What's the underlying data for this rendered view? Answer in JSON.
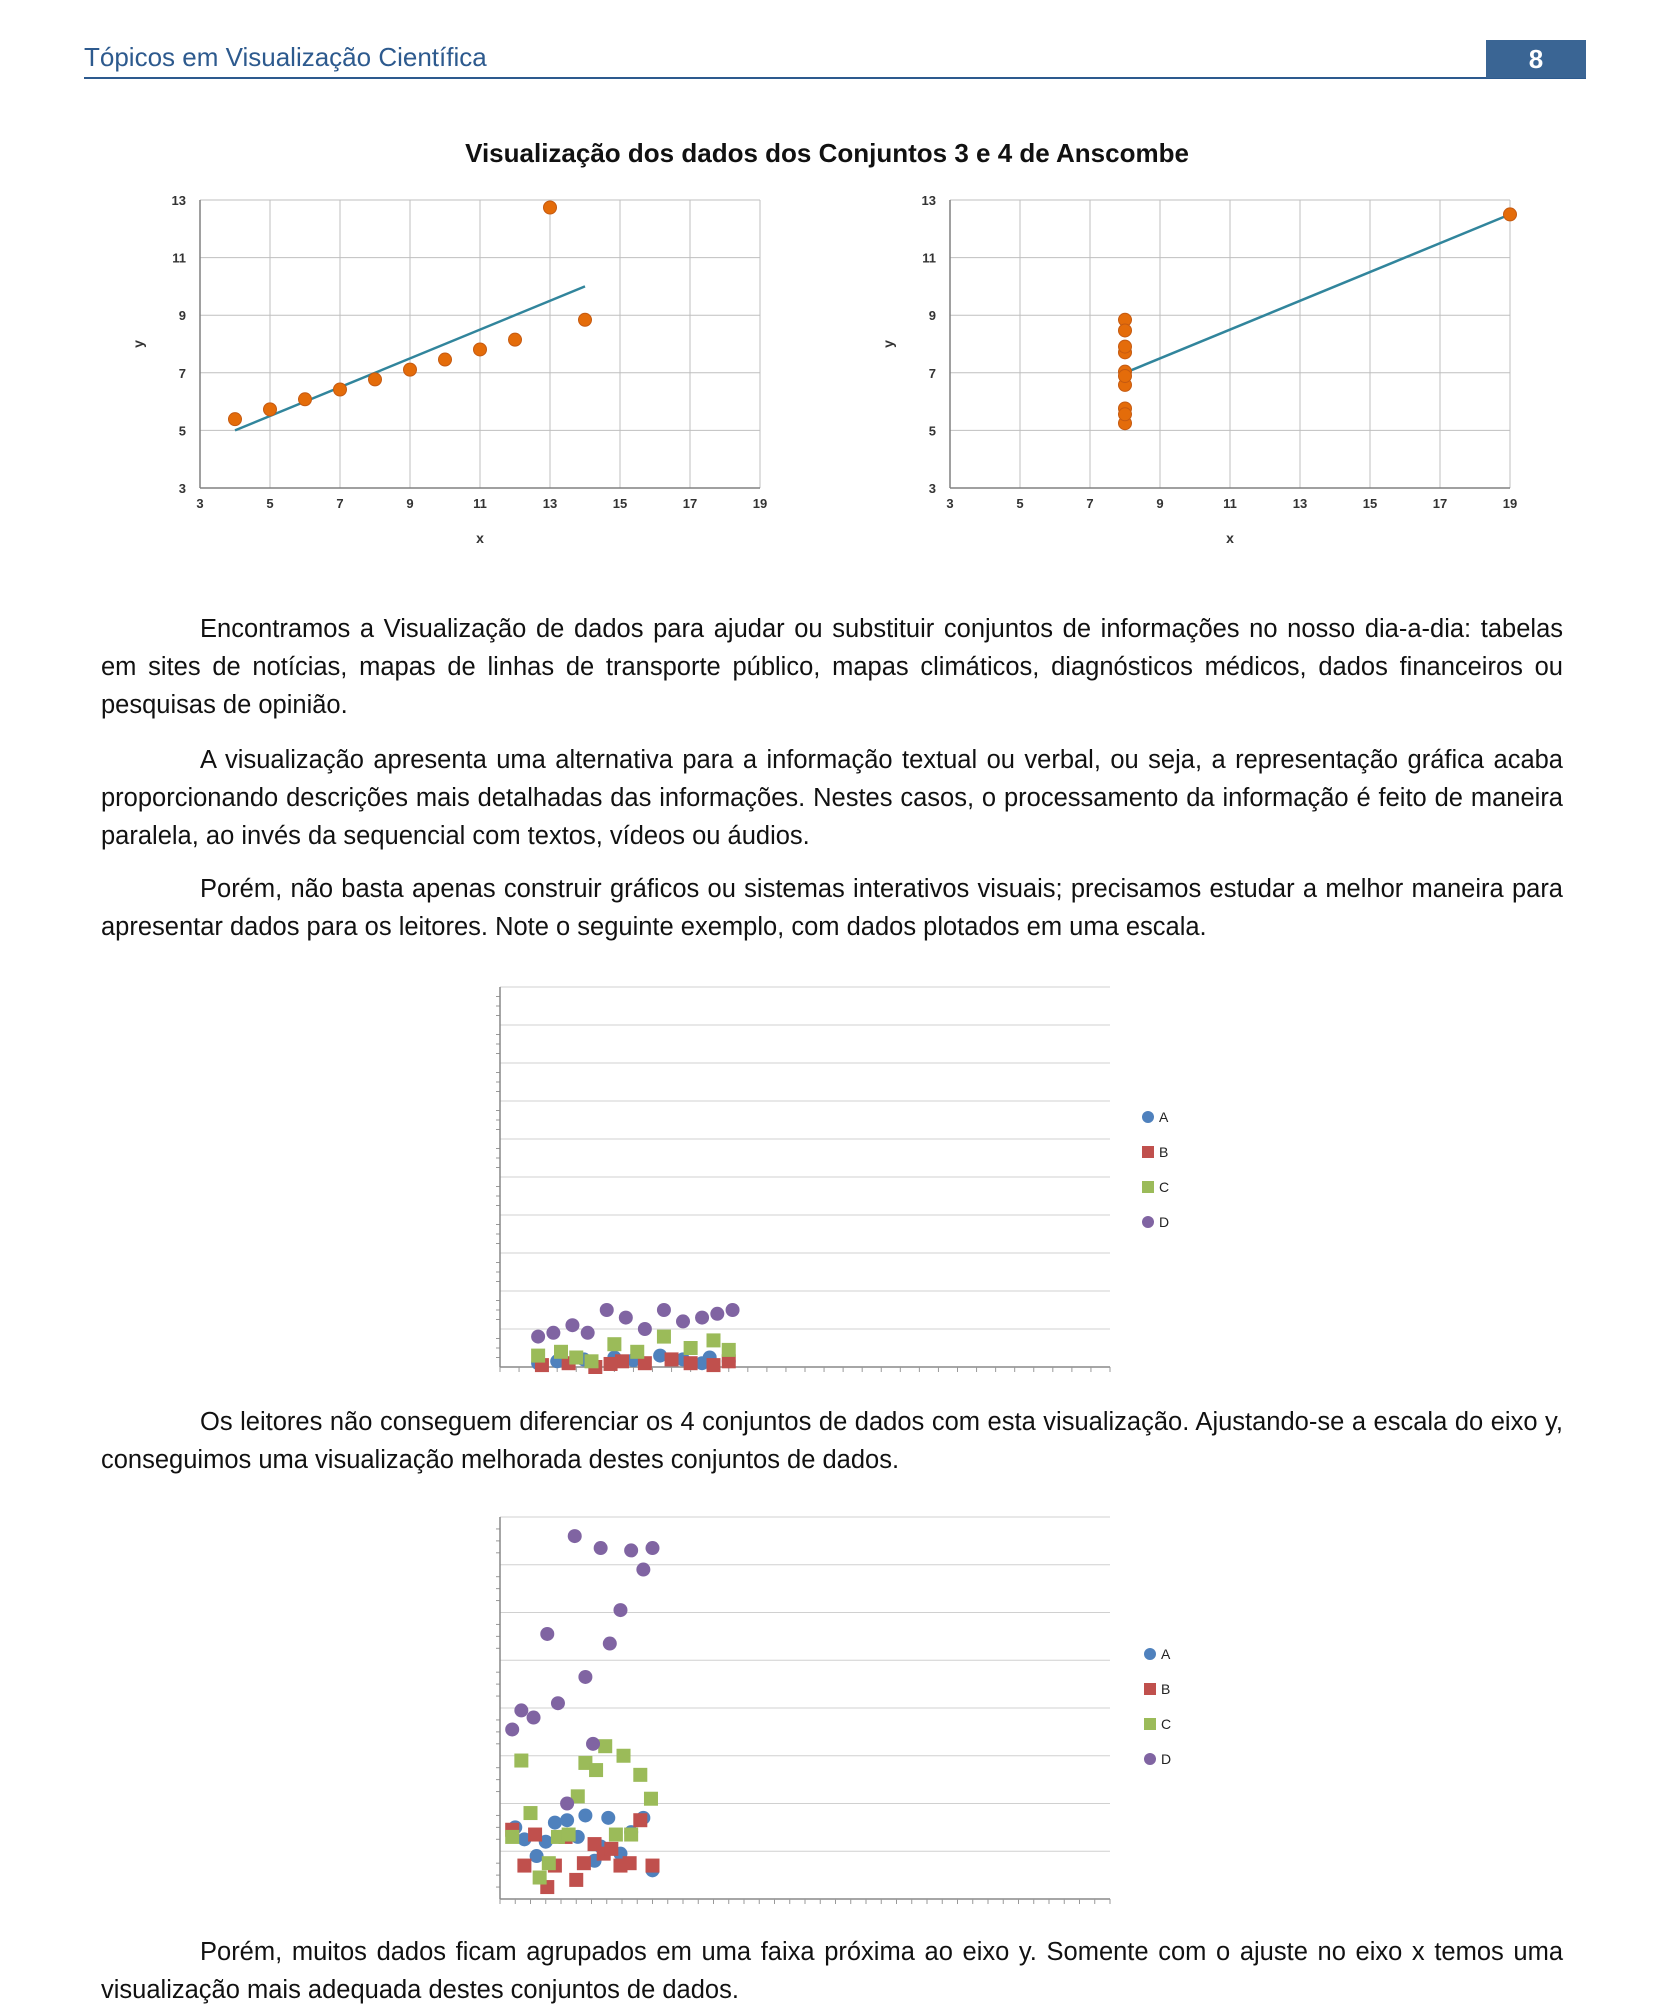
{
  "header": {
    "title": "Tópicos em Visualização Científica",
    "page_number": "8",
    "color": "#2d5a8e"
  },
  "figure_title": "Visualização dos dados dos Conjuntos 3 e 4 de Anscombe",
  "paragraphs": [
    "Encontramos a Visualização de dados para ajudar ou substituir conjuntos de informações no nosso dia-a-dia: tabelas em sites de notícias, mapas de linhas de transporte público, mapas climáticos, diagnósticos médicos, dados financeiros ou pesquisas de opinião.",
    "A visualização apresenta uma alternativa para a informação textual ou verbal, ou seja, a representação gráfica acaba proporcionando descrições mais detalhadas das informações. Nestes casos, o processamento da informação é feito de maneira paralela, ao invés da sequencial com textos, vídeos ou áudios.",
    "Porém, não basta apenas construir gráficos ou sistemas interativos visuais; precisamos estudar a melhor maneira para apresentar dados para os leitores. Note o seguinte exemplo, com dados plotados em uma escala.",
    "Os leitores não conseguem diferenciar os 4 conjuntos de dados com esta visualização. Ajustando-se a escala do eixo y, conseguimos uma visualização melhorada destes conjuntos de dados.",
    "Porém, muitos dados ficam agrupados em uma faixa próxima ao eixo y. Somente com o ajuste no eixo x temos uma visualização mais adequada destes conjuntos de dados."
  ],
  "chart_data": [
    {
      "type": "scatter",
      "xlabel": "x",
      "ylabel": "y",
      "xlim": [
        3,
        19
      ],
      "ylim": [
        3,
        13
      ],
      "xticks": [
        3,
        5,
        7,
        9,
        11,
        13,
        15,
        17,
        19
      ],
      "yticks": [
        3,
        5,
        7,
        9,
        11,
        13
      ],
      "grid": true,
      "point_color": "#e46c0a",
      "line_color": "#31859c",
      "series": [
        {
          "x": [
            10,
            8,
            13,
            9,
            11,
            14,
            6,
            4,
            12,
            7,
            5
          ],
          "y": [
            7.46,
            6.77,
            12.74,
            7.11,
            7.81,
            8.84,
            6.08,
            5.39,
            8.15,
            6.42,
            5.73
          ]
        }
      ],
      "trendline": {
        "x": [
          4,
          14
        ],
        "y": [
          5.0,
          10.0
        ]
      }
    },
    {
      "type": "scatter",
      "xlabel": "x",
      "ylabel": "y",
      "xlim": [
        3,
        19
      ],
      "ylim": [
        3,
        13
      ],
      "xticks": [
        3,
        5,
        7,
        9,
        11,
        13,
        15,
        17,
        19
      ],
      "yticks": [
        3,
        5,
        7,
        9,
        11,
        13
      ],
      "grid": true,
      "point_color": "#e46c0a",
      "line_color": "#31859c",
      "series": [
        {
          "x": [
            8,
            8,
            8,
            8,
            8,
            8,
            8,
            19,
            8,
            8,
            8
          ],
          "y": [
            6.58,
            5.76,
            7.71,
            8.84,
            8.47,
            7.04,
            5.25,
            12.5,
            5.56,
            7.91,
            6.89
          ]
        }
      ],
      "trendline": {
        "x": [
          8,
          19
        ],
        "y": [
          7.0,
          12.5
        ]
      }
    },
    {
      "type": "scatter",
      "xlim": [
        0,
        16
      ],
      "ylim": [
        0,
        100
      ],
      "grid": true,
      "legend": "right",
      "series": [
        {
          "name": "A",
          "marker": "circle",
          "color": "#4f81bd",
          "x": [
            1.0,
            1.5,
            2.2,
            3.0,
            3.5,
            4.2,
            4.8,
            5.3,
            5.5,
            6.0
          ],
          "y": [
            1,
            1.5,
            2,
            2.5,
            1.8,
            3,
            2,
            1,
            2.5,
            1.5
          ]
        },
        {
          "name": "B",
          "marker": "square",
          "color": "#c0504d",
          "x": [
            1.1,
            1.8,
            2.5,
            3.2,
            3.8,
            4.5,
            5.0,
            5.6,
            6.0,
            2.9
          ],
          "y": [
            0.5,
            1,
            0,
            1.5,
            1,
            2,
            1,
            0.5,
            1.5,
            0.8
          ]
        },
        {
          "name": "C",
          "marker": "square",
          "color": "#9bbb59",
          "x": [
            1.0,
            1.6,
            2.4,
            3.0,
            3.6,
            4.3,
            5.0,
            5.6,
            6.0,
            2.0
          ],
          "y": [
            3,
            4,
            1.5,
            6,
            4,
            8,
            5,
            7,
            4.5,
            2.5
          ]
        },
        {
          "name": "D",
          "marker": "circle",
          "color": "#8064a2",
          "x": [
            1.0,
            1.4,
            1.9,
            2.3,
            2.8,
            3.3,
            3.8,
            4.3,
            4.8,
            5.3,
            5.7,
            6.1
          ],
          "y": [
            8,
            9,
            11,
            9,
            15,
            13,
            10,
            15,
            12,
            13,
            14,
            15
          ]
        }
      ]
    },
    {
      "type": "scatter",
      "xlim": [
        0,
        40
      ],
      "ylim": [
        0,
        16
      ],
      "grid": true,
      "legend": "right",
      "series": [
        {
          "name": "A",
          "marker": "circle",
          "color": "#4f81bd",
          "x": [
            1.0,
            1.6,
            2.4,
            3.0,
            3.6,
            4.4,
            5.1,
            5.6,
            6.2,
            6.6,
            7.1,
            7.9,
            8.6,
            9.4,
            10.0
          ],
          "y": [
            3.0,
            2.5,
            1.8,
            2.4,
            3.2,
            3.3,
            2.6,
            3.5,
            1.6,
            2.2,
            3.4,
            1.9,
            2.8,
            3.4,
            1.2
          ]
        },
        {
          "name": "B",
          "marker": "square",
          "color": "#c0504d",
          "x": [
            0.8,
            1.6,
            2.3,
            3.1,
            3.6,
            4.3,
            5.0,
            5.5,
            6.2,
            6.8,
            7.3,
            7.9,
            8.5,
            9.2,
            10.0
          ],
          "y": [
            2.9,
            1.4,
            2.7,
            0.5,
            1.4,
            2.6,
            0.8,
            1.5,
            2.3,
            1.9,
            2.1,
            1.4,
            1.5,
            3.3,
            1.4
          ]
        },
        {
          "name": "C",
          "marker": "square",
          "color": "#9bbb59",
          "x": [
            0.8,
            1.4,
            2.0,
            2.6,
            3.2,
            3.8,
            4.5,
            5.1,
            5.6,
            6.3,
            6.9,
            7.6,
            8.1,
            8.6,
            9.2,
            9.9
          ],
          "y": [
            2.6,
            5.8,
            3.6,
            0.9,
            1.5,
            2.6,
            2.7,
            4.3,
            5.7,
            5.4,
            6.4,
            2.7,
            6.0,
            2.7,
            5.2,
            4.2
          ]
        },
        {
          "name": "D",
          "marker": "circle",
          "color": "#8064a2",
          "x": [
            0.8,
            1.4,
            2.2,
            3.1,
            3.8,
            4.4,
            4.9,
            5.6,
            6.1,
            6.6,
            7.2,
            7.9,
            8.6,
            9.4,
            10.0
          ],
          "y": [
            7.1,
            7.9,
            7.6,
            11.1,
            8.2,
            4.0,
            15.2,
            9.3,
            6.5,
            14.7,
            10.7,
            12.1,
            14.6,
            13.8,
            14.7
          ]
        }
      ]
    }
  ]
}
